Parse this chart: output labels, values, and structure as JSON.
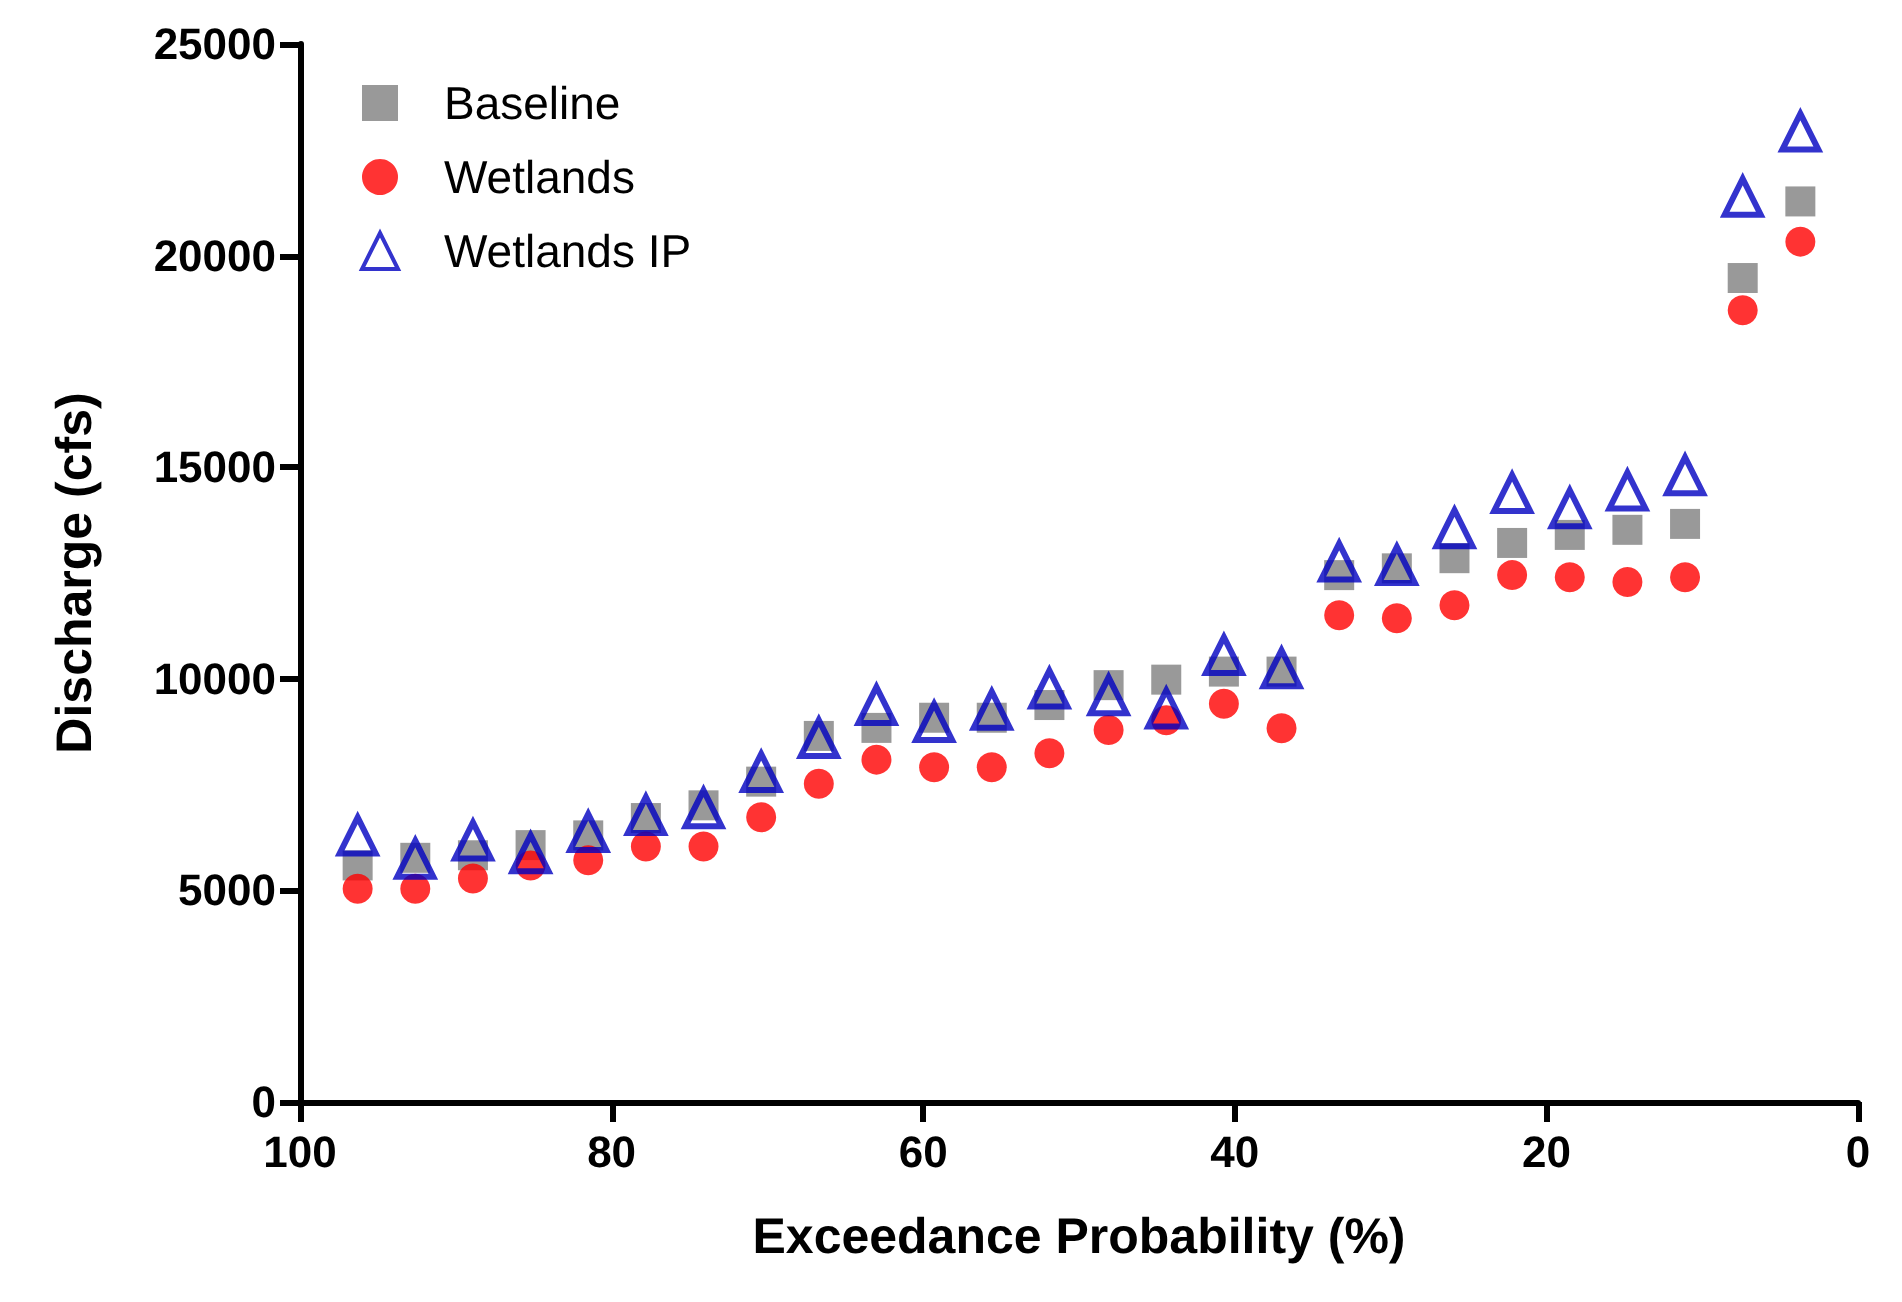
{
  "chart_data": {
    "type": "scatter",
    "xlabel": "Exceedance Probability (%)",
    "ylabel": "Discharge (cfs)",
    "x": [
      96.3,
      92.6,
      88.9,
      85.2,
      81.5,
      77.8,
      74.1,
      70.4,
      66.7,
      63.0,
      59.3,
      55.6,
      51.9,
      48.1,
      44.4,
      40.7,
      37.0,
      33.3,
      29.6,
      25.9,
      22.2,
      18.5,
      14.8,
      11.1,
      7.4,
      3.7
    ],
    "series": [
      {
        "name": "Baseline",
        "color": "#808080",
        "marker": "square",
        "values": [
          5590,
          5770,
          5830,
          6070,
          6300,
          6710,
          7010,
          7570,
          8650,
          8840,
          9080,
          9080,
          9380,
          9850,
          9980,
          10170,
          10170,
          12450,
          12610,
          12850,
          13210,
          13400,
          13520,
          13660,
          19470,
          21280
        ]
      },
      {
        "name": "Wetlands",
        "color": "#ff0000",
        "marker": "circle",
        "values": [
          5040,
          5040,
          5280,
          5590,
          5710,
          6040,
          6040,
          6730,
          7520,
          8090,
          7910,
          7910,
          8240,
          8790,
          9020,
          9410,
          8830,
          11500,
          11430,
          11740,
          12450,
          12400,
          12290,
          12400,
          18710,
          20330
        ]
      },
      {
        "name": "Wetlands IP",
        "color": "#0000c0",
        "marker": "triangle",
        "values": [
          6300,
          5750,
          6180,
          5880,
          6380,
          6780,
          6940,
          7800,
          8600,
          9380,
          8980,
          9270,
          9770,
          9610,
          9300,
          10560,
          10250,
          12770,
          12690,
          13560,
          14390,
          14030,
          14450,
          14810,
          21390,
          22930
        ]
      }
    ],
    "xlim": [
      100,
      0
    ],
    "xticks": [
      0,
      20,
      40,
      60,
      80,
      100
    ],
    "ylim": [
      0,
      25000
    ],
    "yticks": [
      0,
      5000,
      10000,
      15000,
      20000,
      25000
    ],
    "grid": false,
    "legend": "top left"
  }
}
